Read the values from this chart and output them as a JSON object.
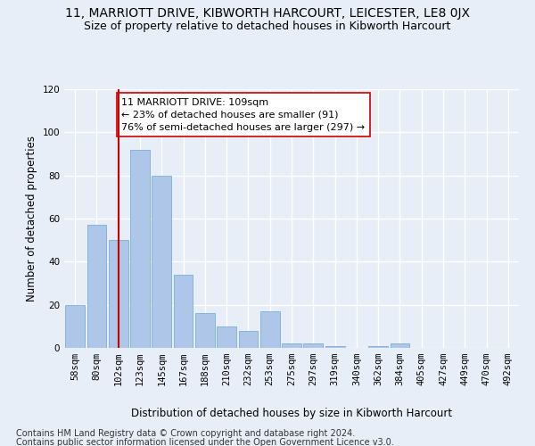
{
  "title": "11, MARRIOTT DRIVE, KIBWORTH HARCOURT, LEICESTER, LE8 0JX",
  "subtitle": "Size of property relative to detached houses in Kibworth Harcourt",
  "xlabel": "Distribution of detached houses by size in Kibworth Harcourt",
  "ylabel": "Number of detached properties",
  "footer1": "Contains HM Land Registry data © Crown copyright and database right 2024.",
  "footer2": "Contains public sector information licensed under the Open Government Licence v3.0.",
  "categories": [
    "58sqm",
    "80sqm",
    "102sqm",
    "123sqm",
    "145sqm",
    "167sqm",
    "188sqm",
    "210sqm",
    "232sqm",
    "253sqm",
    "275sqm",
    "297sqm",
    "319sqm",
    "340sqm",
    "362sqm",
    "384sqm",
    "405sqm",
    "427sqm",
    "449sqm",
    "470sqm",
    "492sqm"
  ],
  "values": [
    20,
    57,
    50,
    92,
    80,
    34,
    16,
    10,
    8,
    17,
    2,
    2,
    1,
    0,
    1,
    2,
    0,
    0,
    0,
    0,
    0
  ],
  "bar_color": "#aec6e8",
  "bar_edge_color": "#7aafd4",
  "vline_x": 2,
  "vline_color": "#cc0000",
  "annotation_text": "11 MARRIOTT DRIVE: 109sqm\n← 23% of detached houses are smaller (91)\n76% of semi-detached houses are larger (297) →",
  "annotation_box_color": "#ffffff",
  "annotation_box_edge": "#cc0000",
  "ylim": [
    0,
    120
  ],
  "yticks": [
    0,
    20,
    40,
    60,
    80,
    100,
    120
  ],
  "background_color": "#e8eef7",
  "grid_color": "#ffffff",
  "title_fontsize": 10,
  "subtitle_fontsize": 9,
  "axis_label_fontsize": 8.5,
  "tick_fontsize": 7.5,
  "footer_fontsize": 7,
  "annot_fontsize": 8
}
